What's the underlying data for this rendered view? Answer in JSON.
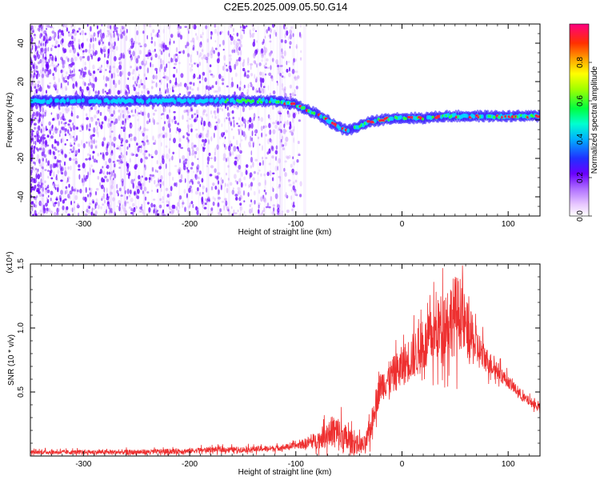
{
  "title": "C2E5.2025.009.05.50.G14",
  "chart_data": [
    {
      "type": "heatmap",
      "xlabel": "Height of straight line (km)",
      "ylabel": "Frequency (Hz)",
      "xlim": [
        -350,
        130
      ],
      "ylim": [
        -50,
        50
      ],
      "xticks": [
        -300,
        -200,
        -100,
        0,
        100
      ],
      "yticks": [
        -40,
        -20,
        0,
        20,
        40
      ],
      "colorbar": {
        "label": "Normalized spectral amplitude",
        "range": [
          0,
          1
        ],
        "ticks": [
          "0.0",
          "0.2",
          "0.4",
          "0.6",
          "0.8"
        ],
        "tick_values": [
          0,
          0.2,
          0.4,
          0.6,
          0.8
        ]
      },
      "ridge": {
        "x": [
          -350,
          -300,
          -250,
          -200,
          -150,
          -120,
          -100,
          -80,
          -65,
          -55,
          -48,
          -40,
          -30,
          -20,
          -10,
          0,
          20,
          40,
          60,
          80,
          100,
          130
        ],
        "y": [
          10,
          10,
          10,
          10,
          10,
          10,
          8,
          3,
          -2,
          -5,
          -5,
          -3,
          -1,
          0,
          1,
          1,
          1,
          2,
          2,
          2,
          2,
          2
        ]
      },
      "colors": {
        "low": "#cc99ff",
        "mid": "#6a00ff",
        "band": "#00e0ff",
        "peak": "#ff2040"
      }
    },
    {
      "type": "line",
      "xlabel": "Height of straight line (km)",
      "ylabel": "SNR (10 * v/v)",
      "y_multiplier": "(x10⁴)",
      "xlim": [
        -350,
        130
      ],
      "ylim": [
        0,
        1.5
      ],
      "xticks": [
        -300,
        -200,
        -100,
        0,
        100
      ],
      "yticks": [
        0.5,
        1.0,
        1.5
      ],
      "ytick_labels": [
        "0.5",
        "1.0",
        "1.5"
      ],
      "line_color": "#ee3030",
      "envelope": {
        "x": [
          -350,
          -300,
          -250,
          -200,
          -180,
          -150,
          -120,
          -100,
          -80,
          -65,
          -55,
          -45,
          -35,
          -30,
          -25,
          -20,
          -10,
          0,
          10,
          20,
          30,
          40,
          50,
          55,
          60,
          70,
          80,
          100,
          115,
          130
        ],
        "y": [
          0.03,
          0.03,
          0.03,
          0.04,
          0.05,
          0.05,
          0.06,
          0.08,
          0.12,
          0.2,
          0.14,
          0.1,
          0.08,
          0.2,
          0.4,
          0.55,
          0.62,
          0.7,
          0.78,
          0.85,
          0.95,
          1.05,
          1.1,
          1.12,
          1.0,
          0.85,
          0.75,
          0.58,
          0.45,
          0.38
        ]
      },
      "noise_scale": {
        "x": [
          -350,
          -100,
          -80,
          -60,
          -40,
          -20,
          0,
          30,
          50,
          60,
          80,
          100,
          130
        ],
        "y": [
          0.02,
          0.03,
          0.08,
          0.18,
          0.08,
          0.15,
          0.2,
          0.28,
          0.4,
          0.3,
          0.12,
          0.06,
          0.04
        ]
      }
    }
  ]
}
